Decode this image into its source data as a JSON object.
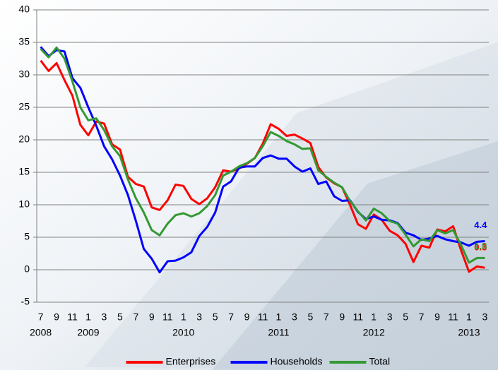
{
  "chart_data": {
    "type": "line",
    "categories": [
      "7",
      null,
      "9",
      null,
      "11",
      null,
      "1",
      null,
      "3",
      null,
      "5",
      null,
      "7",
      null,
      "9",
      null,
      "11",
      null,
      "1",
      null,
      "3",
      null,
      "5",
      null,
      "7",
      null,
      "9",
      null,
      "11",
      null,
      "1",
      null,
      "3",
      null,
      "5",
      null,
      "7",
      null,
      "9",
      null,
      "11",
      null,
      "1",
      null,
      "3",
      null,
      "5",
      null,
      "7",
      null,
      "9",
      null,
      "11",
      null,
      "1",
      null,
      "3"
    ],
    "year_labels": [
      "2008",
      null,
      null,
      null,
      null,
      null,
      "2009",
      null,
      null,
      null,
      null,
      null,
      null,
      null,
      null,
      null,
      null,
      null,
      "2010",
      null,
      null,
      null,
      null,
      null,
      null,
      null,
      null,
      null,
      null,
      null,
      "2011",
      null,
      null,
      null,
      null,
      null,
      null,
      null,
      null,
      null,
      null,
      null,
      "2012",
      null,
      null,
      null,
      null,
      null,
      null,
      null,
      null,
      null,
      null,
      null,
      "2013",
      null,
      null
    ],
    "series": [
      {
        "name": "Enterprises",
        "color": "#ff0000",
        "values": [
          32.2,
          30.6,
          31.8,
          29.2,
          26.8,
          22.3,
          20.7,
          22.8,
          22.5,
          19.3,
          18.5,
          14.3,
          13.2,
          12.8,
          9.6,
          9.2,
          10.7,
          13.1,
          12.9,
          10.9,
          10.1,
          11,
          12.7,
          15.3,
          15.1,
          15.6,
          16.3,
          17.2,
          19.4,
          22.4,
          21.7,
          20.6,
          20.8,
          20.2,
          19.5,
          15.8,
          14.2,
          13.3,
          12.7,
          10,
          7,
          6.3,
          8.5,
          7.7,
          6,
          5.3,
          4,
          1.2,
          3.7,
          3.4,
          6.2,
          5.9,
          6.7,
          3,
          -0.3,
          0.5,
          0.3
        ]
      },
      {
        "name": "Households",
        "color": "#0000ff",
        "values": [
          34.3,
          32.9,
          33.8,
          33.6,
          29.5,
          28,
          25,
          22.2,
          19,
          17,
          14.5,
          11.5,
          7.5,
          3.2,
          1.7,
          -0.4,
          1.3,
          1.4,
          1.9,
          2.7,
          5.2,
          6.6,
          8.8,
          12.8,
          13.6,
          15.7,
          15.9,
          15.9,
          17.2,
          17.6,
          17.1,
          17.1,
          15.9,
          15.1,
          15.6,
          13.2,
          13.6,
          11.3,
          10.6,
          10.7,
          8.9,
          7.8,
          8.2,
          7.7,
          7.6,
          7.2,
          5.7,
          5.3,
          4.6,
          4.8,
          5.2,
          4.7,
          4.4,
          4.2,
          3.7,
          4.3,
          4.4
        ]
      },
      {
        "name": "Total",
        "color": "#339933",
        "values": [
          34,
          32.7,
          34.2,
          32.5,
          29,
          25,
          23,
          23.3,
          21.5,
          19,
          17.5,
          13.9,
          11,
          8.8,
          6.1,
          5.3,
          7.1,
          8.4,
          8.7,
          8.2,
          8.7,
          9.8,
          11.5,
          14.5,
          15.1,
          15.9,
          16.4,
          17.2,
          19,
          21.2,
          20.6,
          19.8,
          19.3,
          18.6,
          18.7,
          15.3,
          14.3,
          13.4,
          12.7,
          10.6,
          9,
          7.6,
          9.4,
          8.7,
          7.5,
          7.1,
          5.4,
          3.6,
          4.7,
          4.4,
          6.1,
          5.6,
          6.1,
          3.8,
          1.1,
          1.8,
          1.8
        ]
      }
    ],
    "ylim": [
      -5,
      40
    ],
    "yticks": [
      -5,
      0,
      5,
      10,
      15,
      20,
      25,
      30,
      35,
      40
    ],
    "grid": true,
    "legend": "bottom"
  }
}
